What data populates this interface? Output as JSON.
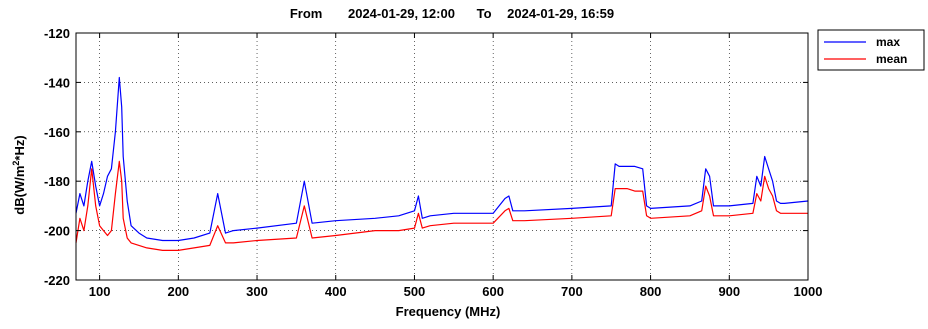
{
  "chart_data": {
    "type": "line",
    "title_parts": {
      "from_label": "From",
      "from_value": "2024-01-29, 12:00",
      "to_label": "To",
      "to_value": "2024-01-29, 16:59"
    },
    "xlabel": "Frequency (MHz)",
    "ylabel_prefix": "dB(W/m",
    "ylabel_sup": "2",
    "ylabel_suffix": "*Hz)",
    "xlim": [
      70,
      1000
    ],
    "ylim": [
      -220,
      -120
    ],
    "xticks": [
      100,
      200,
      300,
      400,
      500,
      600,
      700,
      800,
      900,
      1000
    ],
    "yticks": [
      -120,
      -140,
      -160,
      -180,
      -200,
      -220
    ],
    "grid": "dotted",
    "legend_position": "outside-top-right",
    "series": [
      {
        "name": "max",
        "color": "#0000ff",
        "x": [
          70,
          75,
          80,
          85,
          90,
          95,
          100,
          105,
          110,
          115,
          120,
          125,
          128,
          130,
          135,
          140,
          150,
          160,
          180,
          200,
          220,
          240,
          250,
          260,
          270,
          300,
          350,
          360,
          370,
          400,
          450,
          480,
          500,
          505,
          510,
          520,
          550,
          600,
          615,
          620,
          625,
          640,
          700,
          750,
          755,
          760,
          770,
          780,
          790,
          795,
          800,
          850,
          865,
          870,
          875,
          880,
          885,
          900,
          930,
          935,
          940,
          945,
          950,
          955,
          960,
          965,
          970,
          1000
        ],
        "y": [
          -193,
          -185,
          -190,
          -180,
          -172,
          -182,
          -190,
          -185,
          -178,
          -175,
          -160,
          -138,
          -150,
          -170,
          -188,
          -198,
          -201,
          -203,
          -204,
          -204,
          -203,
          -201,
          -185,
          -201,
          -200,
          -199,
          -197,
          -180,
          -197,
          -196,
          -195,
          -194,
          -192,
          -186,
          -195,
          -194,
          -193,
          -193,
          -187,
          -186,
          -192,
          -192,
          -191,
          -190,
          -173,
          -174,
          -174,
          -174,
          -175,
          -190,
          -191,
          -190,
          -188,
          -175,
          -178,
          -190,
          -190,
          -190,
          -189,
          -178,
          -182,
          -170,
          -175,
          -180,
          -188,
          -189,
          -189,
          -188
        ]
      },
      {
        "name": "mean",
        "color": "#ff0000",
        "x": [
          70,
          75,
          80,
          85,
          90,
          95,
          100,
          105,
          110,
          115,
          120,
          125,
          128,
          130,
          135,
          140,
          150,
          160,
          180,
          200,
          220,
          240,
          250,
          260,
          270,
          300,
          350,
          360,
          370,
          400,
          450,
          480,
          500,
          505,
          510,
          520,
          550,
          600,
          615,
          620,
          625,
          640,
          700,
          750,
          755,
          760,
          770,
          780,
          790,
          795,
          800,
          850,
          865,
          870,
          875,
          880,
          885,
          900,
          930,
          935,
          940,
          945,
          950,
          955,
          960,
          965,
          970,
          1000
        ],
        "y": [
          -205,
          -195,
          -200,
          -190,
          -175,
          -190,
          -198,
          -200,
          -202,
          -200,
          -185,
          -172,
          -180,
          -195,
          -203,
          -205,
          -206,
          -207,
          -208,
          -208,
          -207,
          -206,
          -198,
          -205,
          -205,
          -204,
          -203,
          -190,
          -203,
          -202,
          -200,
          -200,
          -199,
          -193,
          -199,
          -198,
          -197,
          -197,
          -192,
          -191,
          -196,
          -196,
          -195,
          -194,
          -183,
          -183,
          -183,
          -184,
          -184,
          -194,
          -195,
          -194,
          -192,
          -182,
          -186,
          -194,
          -194,
          -194,
          -193,
          -185,
          -188,
          -178,
          -183,
          -186,
          -192,
          -193,
          -193,
          -193
        ]
      }
    ]
  }
}
